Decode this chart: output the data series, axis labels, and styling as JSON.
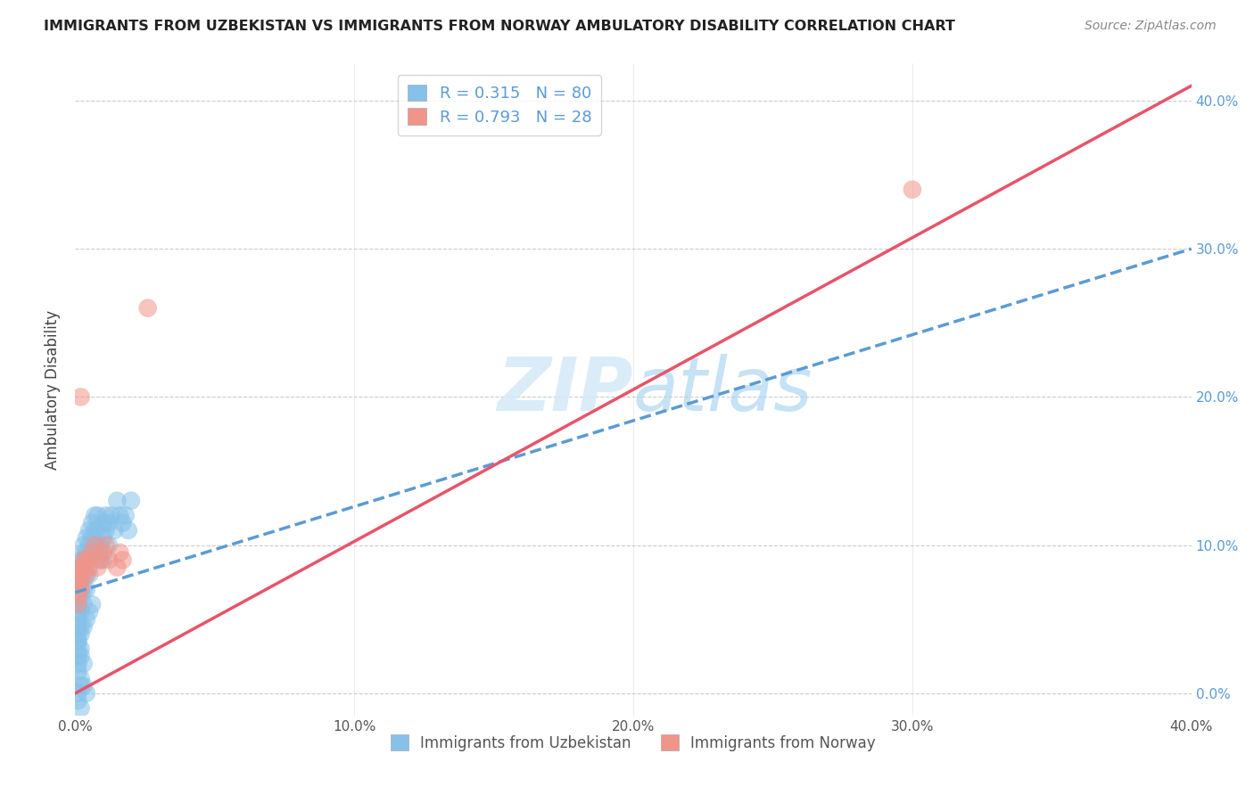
{
  "title": "IMMIGRANTS FROM UZBEKISTAN VS IMMIGRANTS FROM NORWAY AMBULATORY DISABILITY CORRELATION CHART",
  "source": "Source: ZipAtlas.com",
  "ylabel": "Ambulatory Disability",
  "xlabel_blue": "Immigrants from Uzbekistan",
  "xlabel_pink": "Immigrants from Norway",
  "R_blue": 0.315,
  "N_blue": 80,
  "R_pink": 0.793,
  "N_pink": 28,
  "color_blue": "#85c1e9",
  "color_pink": "#f1948a",
  "color_blue_line": "#5b9bd5",
  "color_pink_line": "#e8546a",
  "xmin": 0.0,
  "xmax": 0.4,
  "ymin": -0.015,
  "ymax": 0.425,
  "blue_line_x0": 0.0,
  "blue_line_y0": 0.068,
  "blue_line_x1": 0.4,
  "blue_line_y1": 0.3,
  "pink_line_x0": 0.0,
  "pink_line_y0": 0.0,
  "pink_line_x1": 0.4,
  "pink_line_y1": 0.41,
  "xticks": [
    0.0,
    0.1,
    0.2,
    0.3,
    0.4
  ],
  "yticks": [
    0.0,
    0.1,
    0.2,
    0.3,
    0.4
  ],
  "grid_color": "#cccccc",
  "watermark_color": "#d6eaf8",
  "scatter_blue_x": [
    0.001,
    0.001,
    0.001,
    0.001,
    0.001,
    0.001,
    0.001,
    0.001,
    0.001,
    0.001,
    0.002,
    0.002,
    0.002,
    0.002,
    0.002,
    0.002,
    0.002,
    0.002,
    0.003,
    0.003,
    0.003,
    0.003,
    0.003,
    0.003,
    0.003,
    0.004,
    0.004,
    0.004,
    0.004,
    0.004,
    0.005,
    0.005,
    0.005,
    0.005,
    0.006,
    0.006,
    0.006,
    0.007,
    0.007,
    0.007,
    0.008,
    0.008,
    0.008,
    0.009,
    0.009,
    0.01,
    0.01,
    0.01,
    0.011,
    0.011,
    0.012,
    0.012,
    0.013,
    0.014,
    0.015,
    0.016,
    0.017,
    0.018,
    0.019,
    0.02,
    0.001,
    0.001,
    0.001,
    0.002,
    0.002,
    0.003,
    0.001,
    0.002,
    0.003,
    0.004,
    0.001,
    0.002,
    0.001,
    0.002,
    0.001,
    0.002,
    0.003,
    0.004,
    0.005,
    0.006
  ],
  "scatter_blue_y": [
    0.08,
    0.075,
    0.07,
    0.065,
    0.06,
    0.055,
    0.05,
    0.045,
    0.04,
    0.035,
    0.09,
    0.085,
    0.08,
    0.075,
    0.07,
    0.065,
    0.055,
    0.045,
    0.1,
    0.095,
    0.09,
    0.085,
    0.08,
    0.07,
    0.06,
    0.105,
    0.095,
    0.09,
    0.08,
    0.07,
    0.11,
    0.1,
    0.09,
    0.08,
    0.115,
    0.105,
    0.095,
    0.12,
    0.11,
    0.1,
    0.12,
    0.11,
    0.1,
    0.1,
    0.09,
    0.115,
    0.105,
    0.09,
    0.12,
    0.11,
    0.115,
    0.1,
    0.12,
    0.11,
    0.13,
    0.12,
    0.115,
    0.12,
    0.11,
    0.13,
    0.03,
    0.025,
    0.02,
    0.03,
    0.025,
    0.02,
    0.015,
    0.01,
    0.005,
    0.0,
    -0.005,
    -0.01,
    0.0,
    0.005,
    0.035,
    0.04,
    0.045,
    0.05,
    0.055,
    0.06
  ],
  "scatter_pink_x": [
    0.001,
    0.001,
    0.001,
    0.001,
    0.001,
    0.002,
    0.002,
    0.002,
    0.002,
    0.003,
    0.003,
    0.026,
    0.004,
    0.004,
    0.005,
    0.005,
    0.006,
    0.007,
    0.008,
    0.009,
    0.01,
    0.011,
    0.012,
    0.015,
    0.016,
    0.017,
    0.3,
    0.002
  ],
  "scatter_pink_y": [
    0.08,
    0.075,
    0.07,
    0.065,
    0.06,
    0.085,
    0.08,
    0.075,
    0.07,
    0.09,
    0.085,
    0.26,
    0.09,
    0.08,
    0.09,
    0.085,
    0.095,
    0.1,
    0.085,
    0.09,
    0.095,
    0.1,
    0.09,
    0.085,
    0.095,
    0.09,
    0.34,
    0.2
  ]
}
